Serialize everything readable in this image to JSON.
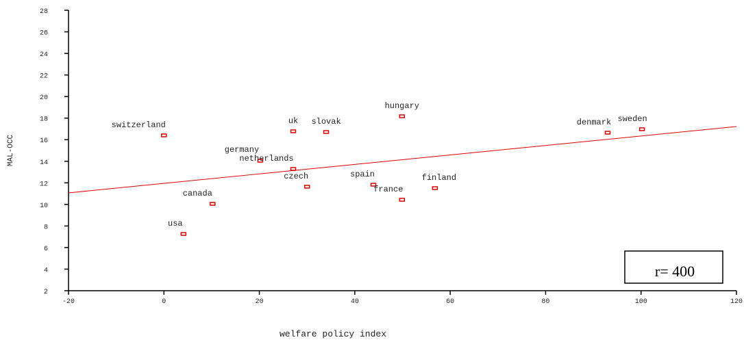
{
  "chart_data": {
    "type": "scatter",
    "x_label": "welfare policy index",
    "y_label": "MAL-OCC",
    "labels": [
      "switzerland",
      "usa",
      "canada",
      "germany",
      "uk",
      "netherlands",
      "czech",
      "slovak",
      "spain",
      "hungary",
      "france",
      "finland",
      "denmark",
      "sweden"
    ],
    "x": [
      0,
      4.1,
      10.2,
      20.2,
      27.1,
      27.1,
      30,
      34,
      43.9,
      49.9,
      49.9,
      56.8,
      93,
      100.2
    ],
    "y": [
      16.4,
      7.26,
      10.05,
      14.05,
      16.78,
      13.29,
      11.64,
      16.71,
      11.83,
      18.17,
      10.43,
      11.51,
      16.65,
      16.97
    ],
    "color": "#e00000",
    "trendline": {
      "x": [
        -20,
        120
      ],
      "y": [
        11.07,
        17.22
      ],
      "color": "#e00000"
    },
    "annotation": "r= 400",
    "xlim": [
      -20,
      120
    ],
    "xticks": [
      -20,
      0,
      20,
      40,
      60,
      80,
      100,
      120
    ],
    "ylim": [
      2,
      28
    ],
    "yticks": [
      2,
      4,
      6,
      8,
      10,
      12,
      14,
      16,
      18,
      20,
      22,
      24,
      26,
      28
    ]
  }
}
